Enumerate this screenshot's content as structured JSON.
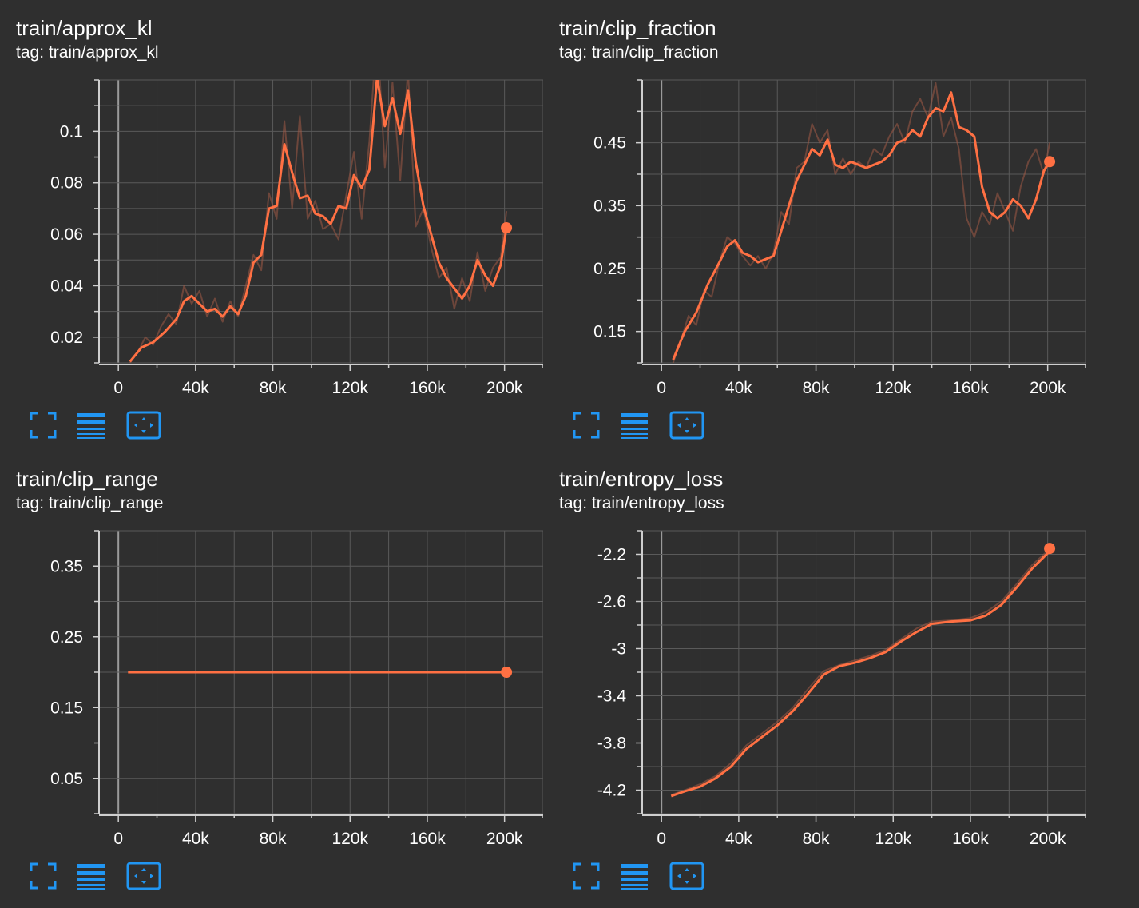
{
  "colors": {
    "background": "#2f2f2f",
    "grid": "#5a5a5a",
    "axis": "#cfcfcf",
    "line": "#ff7043",
    "raw_line": "#a05a45",
    "icon": "#2196f3"
  },
  "toolbar": {
    "fullscreen_icon": "fullscreen-icon",
    "log_scale_icon": "lines-icon",
    "fit_domain_icon": "fit-domain-icon"
  },
  "chart_data": [
    {
      "type": "line",
      "title": "train/approx_kl",
      "tag": "tag: train/approx_kl",
      "xlim": [
        -10000,
        220000
      ],
      "ylim": [
        0.01,
        0.12
      ],
      "xticks": [
        0,
        40000,
        80000,
        120000,
        160000,
        200000
      ],
      "xtick_labels": [
        "0",
        "40k",
        "80k",
        "120k",
        "160k",
        "200k"
      ],
      "yticks": [
        0.02,
        0.04,
        0.06,
        0.08,
        0.1
      ],
      "ytick_labels": [
        "0.02",
        "0.04",
        "0.06",
        "0.08",
        "0.1"
      ],
      "series": [
        {
          "name": "smoothed",
          "x": [
            6000,
            12000,
            18000,
            24000,
            30000,
            34000,
            38000,
            42000,
            46000,
            50000,
            54000,
            58000,
            62000,
            66000,
            70000,
            74000,
            78000,
            82000,
            86000,
            90000,
            94000,
            98000,
            102000,
            106000,
            110000,
            114000,
            118000,
            122000,
            126000,
            130000,
            134000,
            138000,
            142000,
            146000,
            150000,
            154000,
            158000,
            162000,
            166000,
            170000,
            174000,
            178000,
            182000,
            186000,
            190000,
            194000,
            198000,
            201000
          ],
          "y": [
            0.0105,
            0.016,
            0.018,
            0.022,
            0.027,
            0.034,
            0.036,
            0.033,
            0.03,
            0.031,
            0.028,
            0.032,
            0.029,
            0.036,
            0.049,
            0.052,
            0.07,
            0.071,
            0.095,
            0.084,
            0.074,
            0.075,
            0.068,
            0.067,
            0.064,
            0.071,
            0.07,
            0.083,
            0.078,
            0.085,
            0.121,
            0.102,
            0.113,
            0.099,
            0.116,
            0.088,
            0.071,
            0.06,
            0.049,
            0.043,
            0.039,
            0.035,
            0.04,
            0.05,
            0.044,
            0.04,
            0.048,
            0.0625
          ]
        },
        {
          "name": "raw",
          "x": [
            6000,
            10000,
            14000,
            18000,
            22000,
            26000,
            30000,
            34000,
            38000,
            42000,
            46000,
            50000,
            54000,
            58000,
            62000,
            66000,
            70000,
            74000,
            78000,
            82000,
            86000,
            90000,
            94000,
            98000,
            102000,
            106000,
            110000,
            114000,
            118000,
            122000,
            126000,
            130000,
            134000,
            138000,
            142000,
            146000,
            150000,
            154000,
            158000,
            162000,
            166000,
            170000,
            174000,
            178000,
            182000,
            186000,
            190000,
            194000,
            198000,
            201000
          ],
          "y": [
            0.01,
            0.014,
            0.02,
            0.017,
            0.024,
            0.029,
            0.025,
            0.04,
            0.033,
            0.038,
            0.028,
            0.035,
            0.026,
            0.034,
            0.028,
            0.04,
            0.052,
            0.046,
            0.076,
            0.066,
            0.104,
            0.07,
            0.106,
            0.066,
            0.073,
            0.062,
            0.064,
            0.058,
            0.075,
            0.092,
            0.066,
            0.096,
            0.14,
            0.086,
            0.119,
            0.081,
            0.124,
            0.063,
            0.07,
            0.055,
            0.043,
            0.047,
            0.031,
            0.043,
            0.034,
            0.053,
            0.038,
            0.047,
            0.051,
            0.069
          ]
        }
      ],
      "last_value": 0.0625
    },
    {
      "type": "line",
      "title": "train/clip_fraction",
      "tag": "tag: train/clip_fraction",
      "xlim": [
        -10000,
        220000
      ],
      "ylim": [
        0.1,
        0.55
      ],
      "xticks": [
        0,
        40000,
        80000,
        120000,
        160000,
        200000
      ],
      "xtick_labels": [
        "0",
        "40k",
        "80k",
        "120k",
        "160k",
        "200k"
      ],
      "yticks": [
        0.15,
        0.25,
        0.35,
        0.45
      ],
      "ytick_labels": [
        "0.15",
        "0.25",
        "0.35",
        "0.45"
      ],
      "series": [
        {
          "name": "smoothed",
          "x": [
            6000,
            12000,
            18000,
            24000,
            30000,
            34000,
            38000,
            42000,
            46000,
            50000,
            54000,
            58000,
            62000,
            66000,
            70000,
            74000,
            78000,
            82000,
            86000,
            90000,
            94000,
            98000,
            102000,
            106000,
            110000,
            114000,
            118000,
            122000,
            126000,
            130000,
            134000,
            138000,
            142000,
            146000,
            150000,
            154000,
            158000,
            162000,
            166000,
            170000,
            174000,
            178000,
            182000,
            186000,
            190000,
            194000,
            198000,
            201000
          ],
          "y": [
            0.105,
            0.15,
            0.18,
            0.225,
            0.26,
            0.285,
            0.295,
            0.275,
            0.27,
            0.26,
            0.265,
            0.27,
            0.31,
            0.35,
            0.39,
            0.415,
            0.44,
            0.43,
            0.455,
            0.415,
            0.41,
            0.42,
            0.415,
            0.41,
            0.415,
            0.42,
            0.43,
            0.45,
            0.455,
            0.47,
            0.46,
            0.49,
            0.505,
            0.5,
            0.53,
            0.475,
            0.47,
            0.46,
            0.38,
            0.34,
            0.33,
            0.34,
            0.36,
            0.35,
            0.33,
            0.36,
            0.405,
            0.42
          ]
        },
        {
          "name": "raw",
          "x": [
            6000,
            10000,
            14000,
            18000,
            22000,
            26000,
            30000,
            34000,
            38000,
            42000,
            46000,
            50000,
            54000,
            58000,
            62000,
            66000,
            70000,
            74000,
            78000,
            82000,
            86000,
            90000,
            94000,
            98000,
            102000,
            106000,
            110000,
            114000,
            118000,
            122000,
            126000,
            130000,
            134000,
            138000,
            142000,
            146000,
            150000,
            154000,
            158000,
            162000,
            166000,
            170000,
            174000,
            178000,
            182000,
            186000,
            190000,
            194000,
            198000,
            201000
          ],
          "y": [
            0.1,
            0.135,
            0.175,
            0.16,
            0.215,
            0.205,
            0.26,
            0.3,
            0.29,
            0.27,
            0.255,
            0.27,
            0.25,
            0.275,
            0.34,
            0.32,
            0.41,
            0.42,
            0.48,
            0.45,
            0.47,
            0.4,
            0.425,
            0.4,
            0.42,
            0.41,
            0.44,
            0.43,
            0.46,
            0.48,
            0.45,
            0.5,
            0.52,
            0.49,
            0.545,
            0.46,
            0.49,
            0.44,
            0.33,
            0.3,
            0.34,
            0.32,
            0.37,
            0.34,
            0.31,
            0.38,
            0.42,
            0.44,
            0.4,
            0.45
          ]
        }
      ],
      "last_value": 0.42
    },
    {
      "type": "line",
      "title": "train/clip_range",
      "tag": "tag: train/clip_range",
      "xlim": [
        -10000,
        220000
      ],
      "ylim": [
        0.0,
        0.4
      ],
      "xticks": [
        0,
        40000,
        80000,
        120000,
        160000,
        200000
      ],
      "xtick_labels": [
        "0",
        "40k",
        "80k",
        "120k",
        "160k",
        "200k"
      ],
      "yticks": [
        0.05,
        0.15,
        0.25,
        0.35
      ],
      "ytick_labels": [
        "0.05",
        "0.15",
        "0.25",
        "0.35"
      ],
      "series": [
        {
          "name": "smoothed",
          "x": [
            5000,
            201000
          ],
          "y": [
            0.2,
            0.2
          ]
        },
        {
          "name": "raw",
          "x": [
            5000,
            201000
          ],
          "y": [
            0.2,
            0.2
          ]
        }
      ],
      "last_value": 0.2
    },
    {
      "type": "line",
      "title": "train/entropy_loss",
      "tag": "tag: train/entropy_loss",
      "xlim": [
        -10000,
        220000
      ],
      "ylim": [
        -4.4,
        -2.0
      ],
      "xticks": [
        0,
        40000,
        80000,
        120000,
        160000,
        200000
      ],
      "xtick_labels": [
        "0",
        "40k",
        "80k",
        "120k",
        "160k",
        "200k"
      ],
      "yticks": [
        -4.2,
        -3.8,
        -3.4,
        -3.0,
        -2.6,
        -2.2
      ],
      "ytick_labels": [
        "-4.2",
        "-3.8",
        "-3.4",
        "-3",
        "-2.6",
        "-2.2"
      ],
      "series": [
        {
          "name": "smoothed",
          "x": [
            5000,
            12000,
            20000,
            28000,
            36000,
            44000,
            52000,
            60000,
            68000,
            76000,
            84000,
            92000,
            100000,
            108000,
            116000,
            124000,
            132000,
            140000,
            150000,
            160000,
            168000,
            176000,
            184000,
            192000,
            200000,
            201000
          ],
          "y": [
            -4.25,
            -4.21,
            -4.17,
            -4.1,
            -4.0,
            -3.85,
            -3.75,
            -3.65,
            -3.53,
            -3.38,
            -3.22,
            -3.15,
            -3.12,
            -3.08,
            -3.03,
            -2.94,
            -2.86,
            -2.79,
            -2.77,
            -2.76,
            -2.72,
            -2.63,
            -2.48,
            -2.32,
            -2.19,
            -2.15
          ]
        },
        {
          "name": "raw",
          "x": [
            5000,
            12000,
            20000,
            28000,
            36000,
            44000,
            52000,
            60000,
            68000,
            76000,
            84000,
            92000,
            100000,
            108000,
            116000,
            124000,
            132000,
            140000,
            150000,
            160000,
            168000,
            176000,
            184000,
            192000,
            200000,
            201000
          ],
          "y": [
            -4.24,
            -4.2,
            -4.15,
            -4.08,
            -3.97,
            -3.82,
            -3.72,
            -3.62,
            -3.5,
            -3.34,
            -3.19,
            -3.14,
            -3.1,
            -3.06,
            -3.01,
            -2.92,
            -2.83,
            -2.77,
            -2.76,
            -2.74,
            -2.69,
            -2.6,
            -2.45,
            -2.29,
            -2.17,
            -2.14
          ]
        }
      ],
      "last_value": -2.15
    }
  ]
}
